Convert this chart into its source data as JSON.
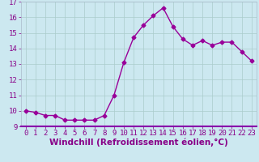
{
  "x": [
    0,
    1,
    2,
    3,
    4,
    5,
    6,
    7,
    8,
    9,
    10,
    11,
    12,
    13,
    14,
    15,
    16,
    17,
    18,
    19,
    20,
    21,
    22,
    23
  ],
  "y": [
    10.0,
    9.9,
    9.7,
    9.7,
    9.4,
    9.4,
    9.4,
    9.4,
    9.7,
    11.0,
    13.1,
    14.7,
    15.5,
    16.1,
    16.6,
    15.4,
    14.6,
    14.2,
    14.5,
    14.2,
    14.4,
    14.4,
    13.8,
    13.2
  ],
  "line_color": "#990099",
  "marker": "D",
  "marker_size": 2.5,
  "background_color": "#cce8f0",
  "grid_color": "#aacccc",
  "xlabel": "Windchill (Refroidissement éolien,°C)",
  "xlim": [
    -0.5,
    23.5
  ],
  "ylim": [
    9.0,
    17.0
  ],
  "yticks": [
    9,
    10,
    11,
    12,
    13,
    14,
    15,
    16,
    17
  ],
  "xticks": [
    0,
    1,
    2,
    3,
    4,
    5,
    6,
    7,
    8,
    9,
    10,
    11,
    12,
    13,
    14,
    15,
    16,
    17,
    18,
    19,
    20,
    21,
    22,
    23
  ],
  "tick_label_fontsize": 6.5,
  "xlabel_fontsize": 7.5,
  "tick_color": "#880088",
  "label_color": "#880088",
  "spine_color": "#8800aa"
}
